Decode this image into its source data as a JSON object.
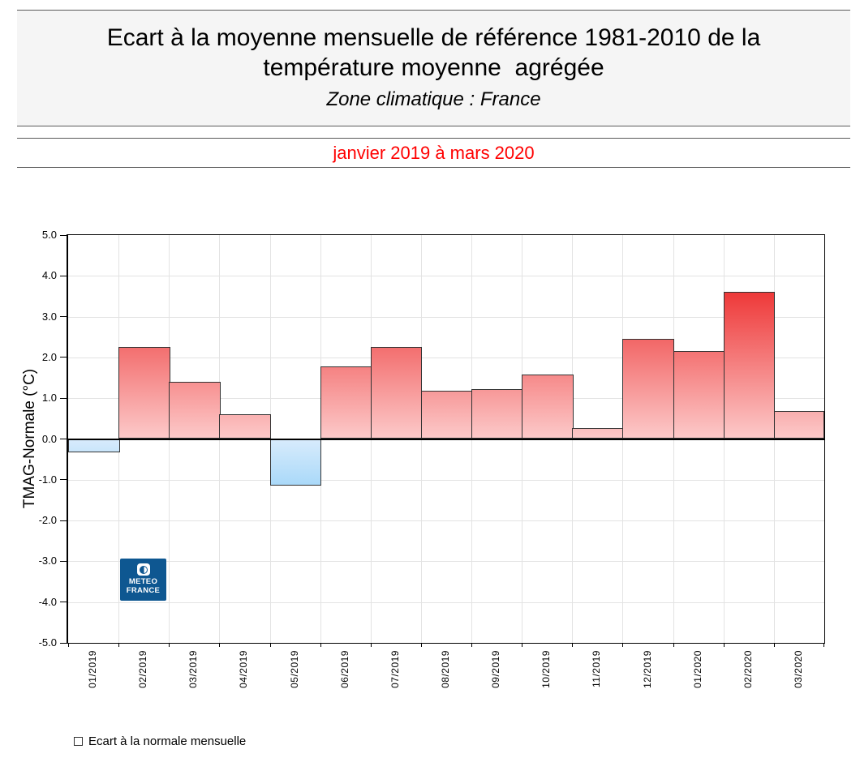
{
  "header": {
    "title_line1": "Ecart à la moyenne mensuelle de référence 1981-2010 de la",
    "title_line2": "température moyenne  agrégée",
    "subtitle": "Zone climatique : France",
    "period": "janvier 2019 à mars 2020",
    "period_color": "#ff0000"
  },
  "chart_data": {
    "type": "bar",
    "title": "Ecart à la moyenne mensuelle de référence 1981-2010 de la température moyenne agrégée",
    "xlabel": "",
    "ylabel": "TMAG-Normale (°C)",
    "ylim": [
      -5.0,
      5.0
    ],
    "ytick_step": 1.0,
    "yticks": [
      "5.0",
      "4.0",
      "3.0",
      "2.0",
      "1.0",
      "0.0",
      "-1.0",
      "-2.0",
      "-3.0",
      "-4.0",
      "-5.0"
    ],
    "grid": true,
    "xtick_label_rotation": "vertical",
    "legend_position": "bottom-left",
    "categories": [
      "01/2019",
      "02/2019",
      "03/2019",
      "04/2019",
      "05/2019",
      "06/2019",
      "07/2019",
      "08/2019",
      "09/2019",
      "10/2019",
      "11/2019",
      "12/2019",
      "01/2020",
      "02/2020",
      "03/2020"
    ],
    "values": [
      -0.33,
      2.25,
      1.4,
      0.6,
      -1.15,
      1.78,
      2.25,
      1.18,
      1.22,
      1.58,
      0.27,
      2.45,
      2.15,
      3.6,
      0.68
    ],
    "colors": {
      "bar_positive_top_max": "#ee3939",
      "bar_positive_bottom": "#fcc9c9",
      "bar_negative_top": "#d7ebfc",
      "bar_negative_bottom_max": "#aad9f9",
      "bar_border": "#333333",
      "zero_line": "#000000",
      "grid": "#e3e3e3"
    }
  },
  "legend": {
    "label": "Ecart à la normale mensuelle"
  },
  "logo": {
    "line1": "METEO",
    "line2": "FRANCE",
    "bg_color": "#0e5791",
    "icon": "meteo-france-half-moon-icon"
  }
}
